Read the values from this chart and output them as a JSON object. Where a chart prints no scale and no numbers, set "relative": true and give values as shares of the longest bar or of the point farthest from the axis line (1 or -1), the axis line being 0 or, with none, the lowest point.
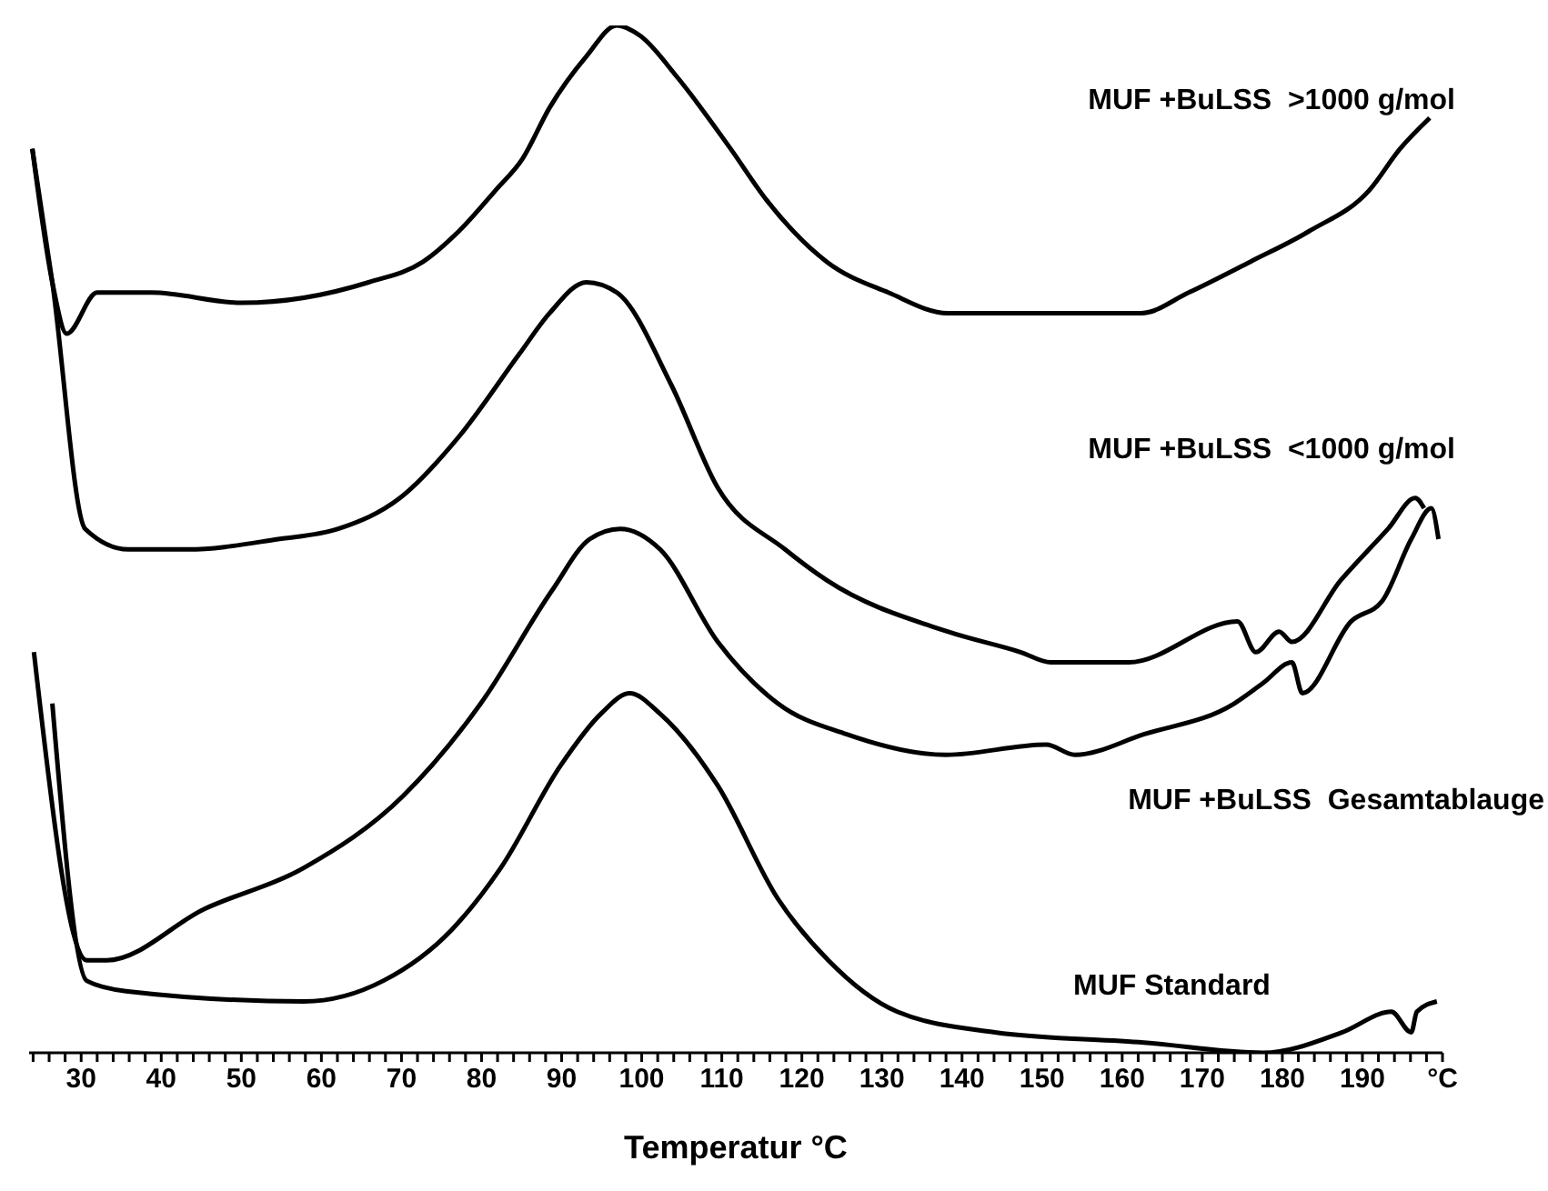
{
  "chart_data": {
    "type": "line",
    "relative": true,
    "xlabel": "Temperatur °C",
    "xlim": [
      23.5,
      200
    ],
    "xticks": [
      {
        "value": 24,
        "label": null
      },
      {
        "value": 26,
        "label": null
      },
      {
        "value": 28,
        "label": null
      },
      30,
      {
        "value": 32,
        "label": null
      },
      {
        "value": 34,
        "label": null
      },
      {
        "value": 36,
        "label": null
      },
      {
        "value": 38,
        "label": null
      },
      40,
      {
        "value": 42,
        "label": null
      },
      {
        "value": 44,
        "label": null
      },
      {
        "value": 46,
        "label": null
      },
      {
        "value": 48,
        "label": null
      },
      50,
      {
        "value": 52,
        "label": null
      },
      {
        "value": 54,
        "label": null
      },
      {
        "value": 56,
        "label": null
      },
      {
        "value": 58,
        "label": null
      },
      60,
      {
        "value": 62,
        "label": null
      },
      {
        "value": 64,
        "label": null
      },
      {
        "value": 66,
        "label": null
      },
      {
        "value": 68,
        "label": null
      },
      70,
      {
        "value": 72,
        "label": null
      },
      {
        "value": 74,
        "label": null
      },
      {
        "value": 76,
        "label": null
      },
      {
        "value": 78,
        "label": null
      },
      80,
      {
        "value": 82,
        "label": null
      },
      {
        "value": 84,
        "label": null
      },
      {
        "value": 86,
        "label": null
      },
      {
        "value": 88,
        "label": null
      },
      90,
      {
        "value": 92,
        "label": null
      },
      {
        "value": 94,
        "label": null
      },
      {
        "value": 96,
        "label": null
      },
      {
        "value": 98,
        "label": null
      },
      100,
      {
        "value": 102,
        "label": null
      },
      {
        "value": 104,
        "label": null
      },
      {
        "value": 106,
        "label": null
      },
      {
        "value": 108,
        "label": null
      },
      110,
      {
        "value": 112,
        "label": null
      },
      {
        "value": 114,
        "label": null
      },
      {
        "value": 116,
        "label": null
      },
      {
        "value": 118,
        "label": null
      },
      120,
      {
        "value": 122,
        "label": null
      },
      {
        "value": 124,
        "label": null
      },
      {
        "value": 126,
        "label": null
      },
      {
        "value": 128,
        "label": null
      },
      130,
      {
        "value": 132,
        "label": null
      },
      {
        "value": 134,
        "label": null
      },
      {
        "value": 136,
        "label": null
      },
      {
        "value": 138,
        "label": null
      },
      140,
      {
        "value": 142,
        "label": null
      },
      {
        "value": 144,
        "label": null
      },
      {
        "value": 146,
        "label": null
      },
      {
        "value": 148,
        "label": null
      },
      150,
      {
        "value": 152,
        "label": null
      },
      {
        "value": 154,
        "label": null
      },
      {
        "value": 156,
        "label": null
      },
      {
        "value": 158,
        "label": null
      },
      160,
      {
        "value": 162,
        "label": null
      },
      {
        "value": 164,
        "label": null
      },
      {
        "value": 166,
        "label": null
      },
      {
        "value": 168,
        "label": null
      },
      170,
      {
        "value": 172,
        "label": null
      },
      {
        "value": 174,
        "label": null
      },
      {
        "value": 176,
        "label": null
      },
      {
        "value": 178,
        "label": null
      },
      180,
      {
        "value": 182,
        "label": null
      },
      {
        "value": 184,
        "label": null
      },
      {
        "value": 186,
        "label": null
      },
      {
        "value": 188,
        "label": null
      },
      190,
      {
        "value": 192,
        "label": null
      },
      {
        "value": 194,
        "label": null
      },
      {
        "value": 196,
        "label": null
      },
      {
        "value": 198,
        "label": null
      },
      {
        "value": 200,
        "label": "°C"
      }
    ],
    "series": [
      {
        "name": "MUF +BuLSS  >1000 g/mol",
        "color": "#000000",
        "x": [
          23.9,
          26.4,
          28.2,
          32.0,
          38.8,
          50.1,
          65.9,
          72.7,
          77.2,
          81.8,
          85.1,
          88.5,
          93.1,
          96.9,
          99.8,
          104.4,
          111.1,
          115.6,
          123.1,
          130.8,
          138.2,
          149.5,
          162.4,
          168.3,
          176.0,
          183.4,
          190.9,
          194.7,
          198.4
        ],
        "values": [
          0.88,
          0.75,
          0.7,
          0.74,
          0.74,
          0.73,
          0.75,
          0.77,
          0.8,
          0.84,
          0.87,
          0.92,
          0.97,
          1.0,
          0.99,
          0.95,
          0.88,
          0.83,
          0.77,
          0.74,
          0.72,
          0.72,
          0.72,
          0.74,
          0.77,
          0.8,
          0.84,
          0.88,
          0.91
        ]
      },
      {
        "name": "MUF +BuLSS  <1000 g/mol",
        "color": "#000000",
        "x": [
          23.9,
          26.4,
          30.5,
          35.9,
          43.3,
          54.6,
          62.1,
          69.8,
          77.2,
          84.7,
          88.5,
          93.1,
          96.9,
          103.7,
          109.5,
          117.9,
          123.1,
          138.2,
          147.3,
          151.1,
          160.8,
          174.4,
          176.7,
          179.6,
          181.2,
          187.3,
          193.2,
          196.6,
          197.7
        ],
        "values": [
          0.88,
          0.75,
          0.51,
          0.49,
          0.49,
          0.5,
          0.51,
          0.54,
          0.6,
          0.68,
          0.72,
          0.75,
          0.74,
          0.65,
          0.55,
          0.49,
          0.46,
          0.41,
          0.39,
          0.38,
          0.38,
          0.42,
          0.39,
          0.41,
          0.4,
          0.46,
          0.51,
          0.54,
          0.53
        ]
      },
      {
        "name": "MUF +BuLSS  Gesamtablauge",
        "color": "#000000",
        "x": [
          24.1,
          30.7,
          33.2,
          45.4,
          57.8,
          70.2,
          79.9,
          88.8,
          93.5,
          97.3,
          102.3,
          109.5,
          117.0,
          125.6,
          138.0,
          150.5,
          154.1,
          162.7,
          174.0,
          177.6,
          181.2,
          182.5,
          188.6,
          192.5,
          196.1,
          198.6,
          199.5
        ],
        "values": [
          0.39,
          0.09,
          0.09,
          0.14,
          0.18,
          0.25,
          0.34,
          0.45,
          0.5,
          0.51,
          0.49,
          0.4,
          0.34,
          0.31,
          0.29,
          0.3,
          0.29,
          0.31,
          0.34,
          0.36,
          0.38,
          0.35,
          0.42,
          0.44,
          0.5,
          0.53,
          0.5
        ]
      },
      {
        "name": "MUF Standard",
        "color": "#000000",
        "x": [
          26.4,
          30.7,
          35.6,
          57.8,
          67.7,
          76.3,
          82.4,
          89.9,
          94.9,
          98.5,
          102.3,
          109.5,
          117.0,
          123.3,
          131.9,
          144.1,
          162.7,
          177.6,
          187.5,
          193.6,
          196.1,
          196.8,
          199.3
        ],
        "values": [
          0.34,
          0.07,
          0.06,
          0.05,
          0.07,
          0.12,
          0.18,
          0.28,
          0.33,
          0.35,
          0.33,
          0.26,
          0.15,
          0.09,
          0.04,
          0.02,
          0.01,
          0,
          0.02,
          0.04,
          0.02,
          0.04,
          0.05
        ]
      }
    ]
  }
}
